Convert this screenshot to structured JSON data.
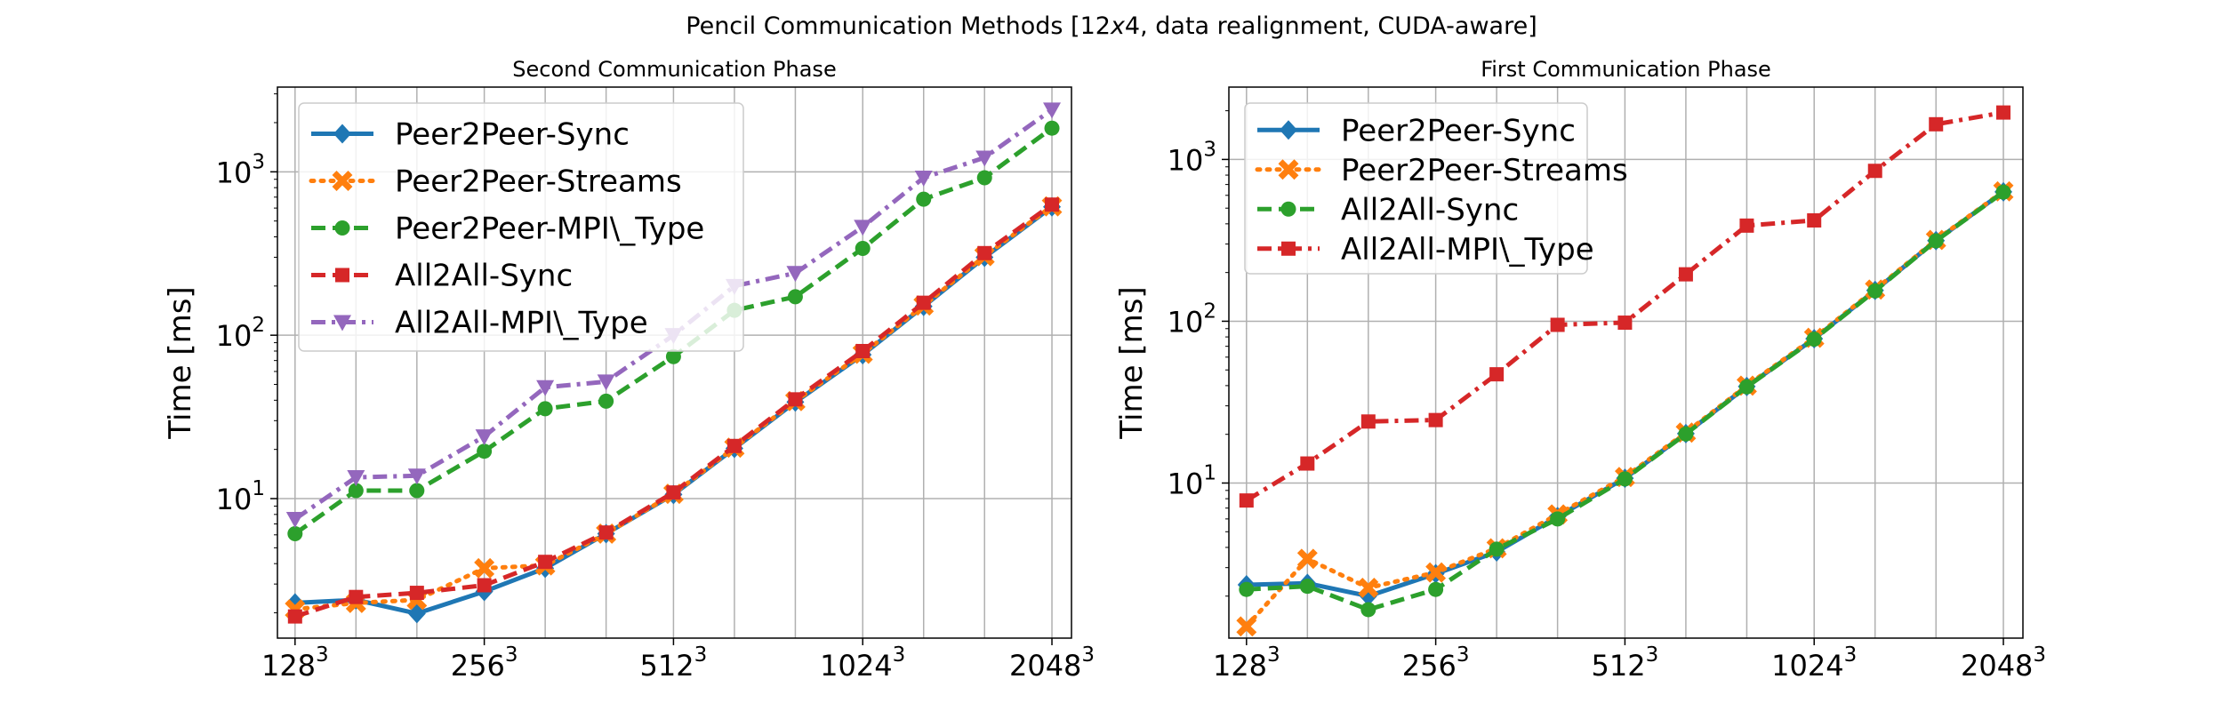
{
  "figure": {
    "title_main": "Pencil Communication Methods [12",
    "title_italic": "x",
    "title_rest": "4, data realignment, CUDA-aware]"
  },
  "chart_data": [
    {
      "type": "line",
      "title": "Second Communication Phase",
      "xlabel": "",
      "ylabel": "Time [ms]",
      "yscale": "log",
      "ylim": [
        1.4,
        3300
      ],
      "xlim": [
        120,
        2200
      ],
      "grid": true,
      "legend_position": "top-left",
      "x": [
        128,
        160,
        200,
        256,
        320,
        400,
        512,
        640,
        800,
        1024,
        1280,
        1600,
        2048
      ],
      "xticks": [
        {
          "value": 128,
          "base": "128",
          "exp": "3"
        },
        {
          "value": 256,
          "base": "256",
          "exp": "3"
        },
        {
          "value": 512,
          "base": "512",
          "exp": "3"
        },
        {
          "value": 1024,
          "base": "1024",
          "exp": "3"
        },
        {
          "value": 2048,
          "base": "2048",
          "exp": "3"
        }
      ],
      "yticks": [
        {
          "value": 10,
          "base": "10",
          "exp": "1"
        },
        {
          "value": 100,
          "base": "10",
          "exp": "2"
        },
        {
          "value": 1000,
          "base": "10",
          "exp": "3"
        }
      ],
      "series": [
        {
          "name": "Peer2Peer-Sync",
          "color": "#1f77b4",
          "dash": "solid",
          "marker": "diamond",
          "values": [
            2.3,
            2.4,
            1.98,
            2.7,
            3.75,
            6.1,
            10.6,
            20.3,
            39,
            76,
            150,
            300,
            610
          ]
        },
        {
          "name": "Peer2Peer-Streams",
          "color": "#ff7f0e",
          "dash": "dotted",
          "marker": "x",
          "values": [
            2.1,
            2.3,
            2.4,
            3.75,
            3.9,
            6.1,
            10.7,
            20.5,
            39.5,
            77,
            152,
            305,
            615
          ]
        },
        {
          "name": "Peer2Peer-MPI\\_Type",
          "color": "#2ca02c",
          "dash": "dashed",
          "marker": "circle",
          "values": [
            6.1,
            11.2,
            11.2,
            19.5,
            35.5,
            39.5,
            74,
            142,
            172,
            340,
            680,
            920,
            1850
          ]
        },
        {
          "name": "All2All-Sync",
          "color": "#d62728",
          "dash": "dashed",
          "marker": "square",
          "values": [
            1.9,
            2.5,
            2.65,
            2.95,
            4.1,
            6.2,
            10.9,
            21,
            40.5,
            80,
            158,
            318,
            630
          ]
        },
        {
          "name": "All2All-MPI\\_Type",
          "color": "#9467bd",
          "dash": "dashdot",
          "marker": "triangle_down",
          "values": [
            7.5,
            13.5,
            13.8,
            24,
            48,
            52,
            100,
            200,
            240,
            460,
            920,
            1220,
            2400
          ]
        }
      ]
    },
    {
      "type": "line",
      "title": "First Communication Phase",
      "xlabel": "",
      "ylabel": "Time [ms]",
      "yscale": "log",
      "ylim": [
        1.1,
        2800
      ],
      "xlim": [
        120,
        2200
      ],
      "grid": true,
      "legend_position": "top-left",
      "x": [
        128,
        160,
        200,
        256,
        320,
        400,
        512,
        640,
        800,
        1024,
        1280,
        1600,
        2048
      ],
      "xticks": [
        {
          "value": 128,
          "base": "128",
          "exp": "3"
        },
        {
          "value": 256,
          "base": "256",
          "exp": "3"
        },
        {
          "value": 512,
          "base": "512",
          "exp": "3"
        },
        {
          "value": 1024,
          "base": "1024",
          "exp": "3"
        },
        {
          "value": 2048,
          "base": "2048",
          "exp": "3"
        }
      ],
      "yticks": [
        {
          "value": 10,
          "base": "10",
          "exp": "1"
        },
        {
          "value": 100,
          "base": "10",
          "exp": "2"
        },
        {
          "value": 1000,
          "base": "10",
          "exp": "3"
        }
      ],
      "series": [
        {
          "name": "Peer2Peer-Sync",
          "color": "#1f77b4",
          "dash": "solid",
          "marker": "diamond",
          "values": [
            2.35,
            2.4,
            2.0,
            2.75,
            3.75,
            6.2,
            10.7,
            20.2,
            39.5,
            78,
            155,
            315,
            630
          ]
        },
        {
          "name": "Peer2Peer-Streams",
          "color": "#ff7f0e",
          "dash": "dotted",
          "marker": "x",
          "values": [
            1.3,
            3.4,
            2.25,
            2.8,
            3.95,
            6.4,
            10.9,
            20.5,
            40,
            79,
            157,
            318,
            635
          ]
        },
        {
          "name": "All2All-Sync",
          "color": "#2ca02c",
          "dash": "dashed",
          "marker": "circle",
          "values": [
            2.2,
            2.3,
            1.65,
            2.2,
            3.9,
            6.0,
            10.6,
            20.1,
            39.3,
            77.5,
            154,
            314,
            628
          ]
        },
        {
          "name": "All2All-MPI\\_Type",
          "color": "#d62728",
          "dash": "dashdot",
          "marker": "square",
          "values": [
            7.8,
            13.2,
            24,
            24.5,
            47,
            95,
            98,
            195,
            390,
            420,
            850,
            1650,
            1950
          ]
        }
      ]
    }
  ]
}
